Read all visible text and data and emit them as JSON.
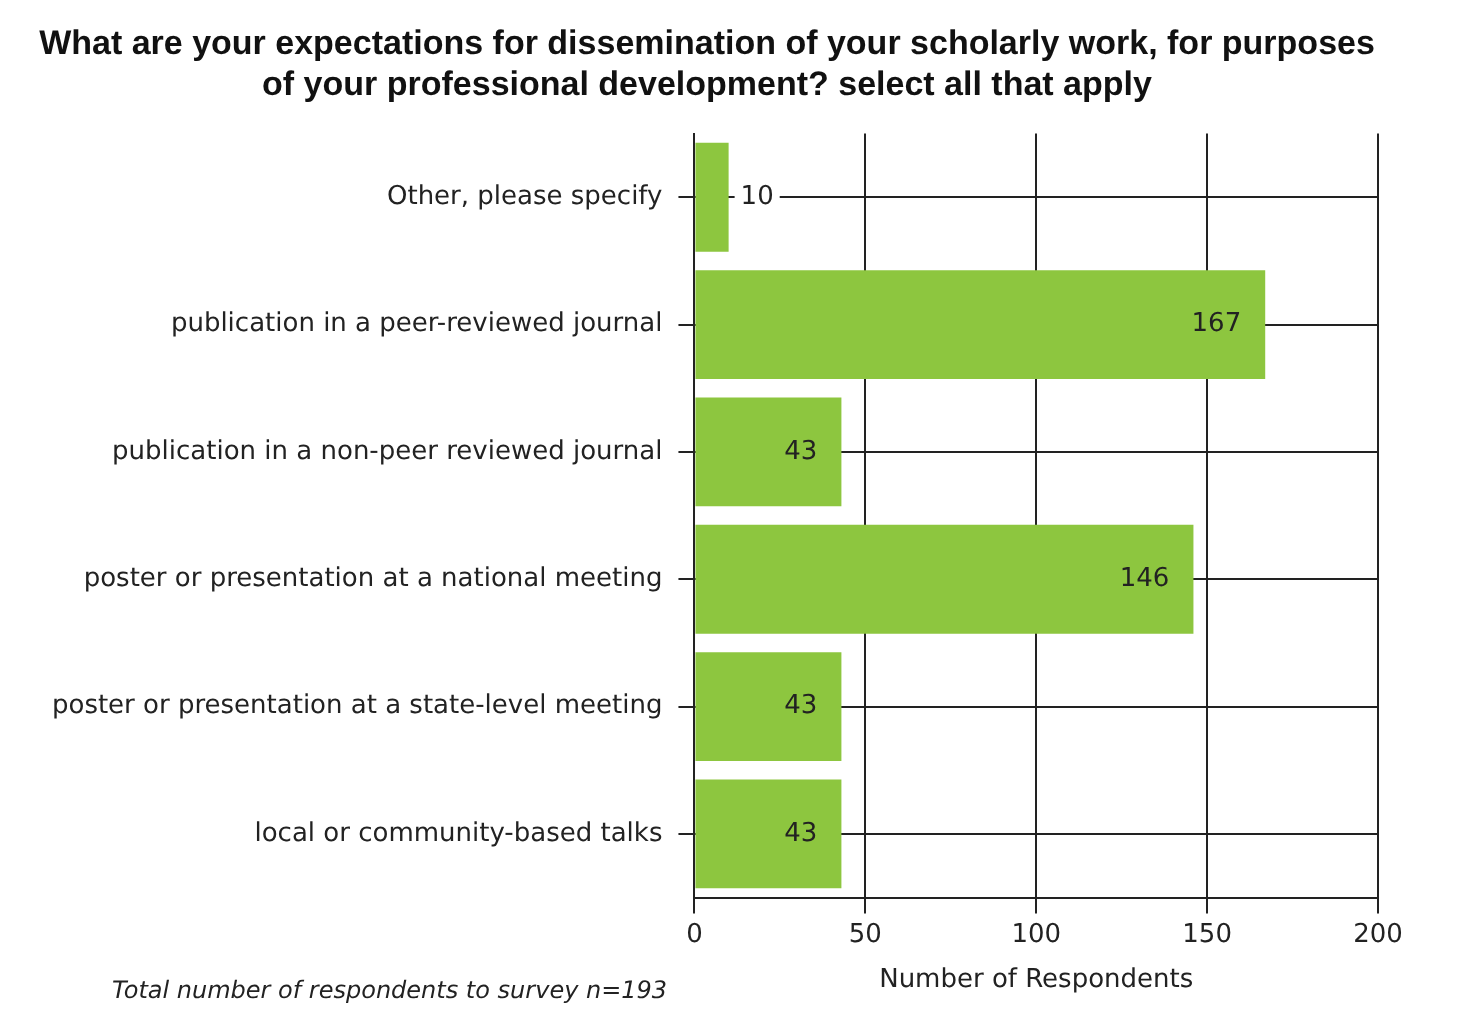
{
  "chart_data": {
    "type": "bar",
    "orientation": "horizontal",
    "title": "What are your expectations for dissemination of your scholarly work, for purposes of your professional development? select all that apply",
    "categories": [
      "Other, please specify",
      "publication in a peer-reviewed journal",
      "publication in a non-peer reviewed journal",
      "poster or presentation at a national meeting",
      "poster or presentation at a state-level meeting",
      "local or community-based talks"
    ],
    "values": [
      10,
      167,
      43,
      146,
      43,
      43
    ],
    "color": "#8dc63f",
    "xlabel": "Number of Respondents",
    "xlim": [
      0,
      200
    ],
    "xticks": [
      0,
      50,
      100,
      150,
      200
    ],
    "grid": true,
    "data_labels": true,
    "annotations": [
      "Total number of respondents to survey n=193"
    ]
  }
}
